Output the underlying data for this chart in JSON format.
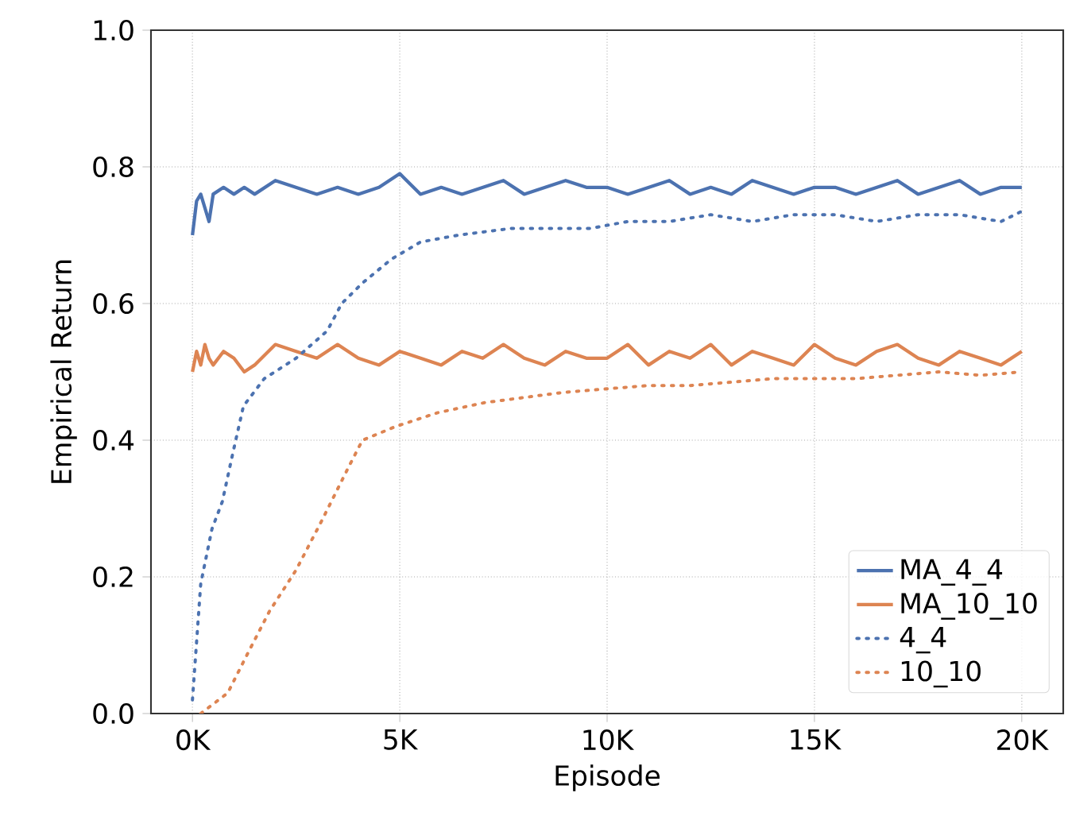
{
  "chart_data": {
    "type": "line",
    "xlabel": "Episode",
    "ylabel": "Empirical Return",
    "xlim": [
      -1000,
      21000
    ],
    "ylim": [
      0,
      1
    ],
    "xticks": [
      {
        "value": 0,
        "label": "0K"
      },
      {
        "value": 5000,
        "label": "5K"
      },
      {
        "value": 10000,
        "label": "10K"
      },
      {
        "value": 15000,
        "label": "15K"
      },
      {
        "value": 20000,
        "label": "20K"
      }
    ],
    "yticks": [
      {
        "value": 0,
        "label": "0.0"
      },
      {
        "value": 0.2,
        "label": "0.2"
      },
      {
        "value": 0.4,
        "label": "0.4"
      },
      {
        "value": 0.6,
        "label": "0.6"
      },
      {
        "value": 0.8,
        "label": "0.8"
      },
      {
        "value": 1,
        "label": "1.0"
      }
    ],
    "grid": true,
    "legend": "bottom right",
    "marker": "none",
    "series": [
      {
        "name": "MA_4_4",
        "color": "#4c72b0",
        "line_style": "solid",
        "x": [
          0,
          100,
          200,
          300,
          400,
          500,
          750,
          1000,
          1250,
          1500,
          2000,
          2500,
          3000,
          3500,
          4000,
          4500,
          5000,
          5500,
          6000,
          6500,
          7000,
          7500,
          8000,
          8500,
          9000,
          9500,
          10000,
          10500,
          11000,
          11500,
          12000,
          12500,
          13000,
          13500,
          14000,
          14500,
          15000,
          15500,
          16000,
          16500,
          17000,
          17500,
          18000,
          18500,
          19000,
          19500,
          20000
        ],
        "values": [
          0.7,
          0.75,
          0.76,
          0.74,
          0.72,
          0.76,
          0.77,
          0.76,
          0.77,
          0.76,
          0.78,
          0.77,
          0.76,
          0.77,
          0.76,
          0.77,
          0.79,
          0.76,
          0.77,
          0.76,
          0.77,
          0.78,
          0.76,
          0.77,
          0.78,
          0.77,
          0.77,
          0.76,
          0.77,
          0.78,
          0.76,
          0.77,
          0.76,
          0.78,
          0.77,
          0.76,
          0.77,
          0.77,
          0.76,
          0.77,
          0.78,
          0.76,
          0.77,
          0.78,
          0.76,
          0.77,
          0.77
        ]
      },
      {
        "name": "MA_10_10",
        "color": "#dd8452",
        "line_style": "solid",
        "x": [
          0,
          100,
          200,
          300,
          400,
          500,
          750,
          1000,
          1250,
          1500,
          2000,
          2500,
          3000,
          3500,
          4000,
          4500,
          5000,
          5500,
          6000,
          6500,
          7000,
          7500,
          8000,
          8500,
          9000,
          9500,
          10000,
          10500,
          11000,
          11500,
          12000,
          12500,
          13000,
          13500,
          14000,
          14500,
          15000,
          15500,
          16000,
          16500,
          17000,
          17500,
          18000,
          18500,
          19000,
          19500,
          20000
        ],
        "values": [
          0.5,
          0.53,
          0.51,
          0.54,
          0.52,
          0.51,
          0.53,
          0.52,
          0.5,
          0.51,
          0.54,
          0.53,
          0.52,
          0.54,
          0.52,
          0.51,
          0.53,
          0.52,
          0.51,
          0.53,
          0.52,
          0.54,
          0.52,
          0.51,
          0.53,
          0.52,
          0.52,
          0.54,
          0.51,
          0.53,
          0.52,
          0.54,
          0.51,
          0.53,
          0.52,
          0.51,
          0.54,
          0.52,
          0.51,
          0.53,
          0.54,
          0.52,
          0.51,
          0.53,
          0.52,
          0.51,
          0.53
        ]
      },
      {
        "name": "4_4",
        "color": "#4c72b0",
        "line_style": "dotted",
        "x": [
          0,
          200,
          470,
          720,
          970,
          1230,
          1730,
          2500,
          3250,
          3600,
          4100,
          4800,
          5500,
          6400,
          7700,
          9600,
          10500,
          11500,
          12500,
          13500,
          14500,
          15500,
          16500,
          17500,
          18500,
          19500,
          20000
        ],
        "values": [
          0.02,
          0.19,
          0.27,
          0.31,
          0.38,
          0.45,
          0.49,
          0.52,
          0.56,
          0.6,
          0.63,
          0.665,
          0.69,
          0.7,
          0.71,
          0.71,
          0.72,
          0.72,
          0.73,
          0.72,
          0.73,
          0.73,
          0.72,
          0.73,
          0.73,
          0.72,
          0.735
        ]
      },
      {
        "name": "10_10",
        "color": "#dd8452",
        "line_style": "dotted",
        "x": [
          200,
          850,
          1350,
          1860,
          2500,
          3100,
          3760,
          4100,
          4900,
          5900,
          7050,
          8950,
          9960,
          11000,
          12000,
          13000,
          14000,
          15000,
          16000,
          17000,
          18000,
          19000,
          20000
        ],
        "values": [
          0.0,
          0.03,
          0.09,
          0.15,
          0.21,
          0.28,
          0.36,
          0.4,
          0.42,
          0.44,
          0.455,
          0.47,
          0.475,
          0.48,
          0.48,
          0.485,
          0.49,
          0.49,
          0.49,
          0.495,
          0.5,
          0.495,
          0.5
        ]
      }
    ]
  }
}
